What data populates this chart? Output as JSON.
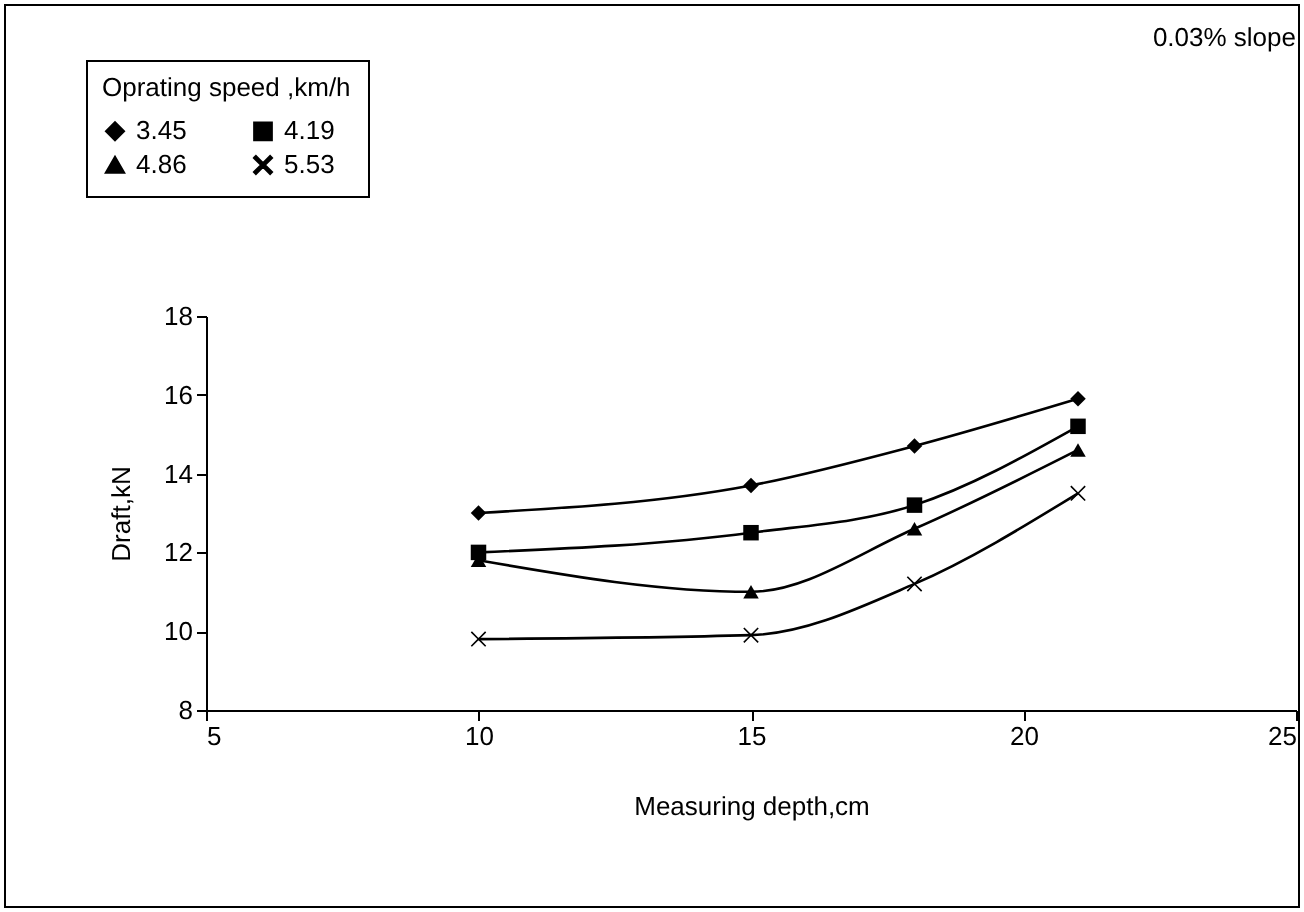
{
  "chart_data": {
    "type": "line",
    "xlabel": "Measuring depth,cm",
    "ylabel": "Draft,kN",
    "legend_title": "Oprating speed ,km/h",
    "legend": "top left",
    "annotations": [
      "0.03% slope"
    ],
    "xlim": [
      5,
      25
    ],
    "xticks": [
      5,
      10,
      15,
      20,
      25
    ],
    "ylim": [
      8,
      18
    ],
    "yticks": [
      8,
      10,
      12,
      14,
      16,
      18
    ],
    "grid": false,
    "x": [
      10,
      15,
      18,
      21
    ],
    "series": [
      {
        "name": "3.45",
        "color": "#000000",
        "marker": "diamond",
        "values": [
          13.0,
          13.7,
          14.7,
          15.9
        ]
      },
      {
        "name": "4.19",
        "color": "#000000",
        "marker": "square",
        "values": [
          12.0,
          12.5,
          13.2,
          15.2
        ]
      },
      {
        "name": "4.86",
        "color": "#000000",
        "marker": "triangle",
        "values": [
          11.8,
          11.0,
          12.6,
          14.6
        ]
      },
      {
        "name": "5.53",
        "color": "#000000",
        "marker": "cross",
        "values": [
          9.8,
          9.9,
          11.2,
          13.5
        ]
      }
    ]
  }
}
